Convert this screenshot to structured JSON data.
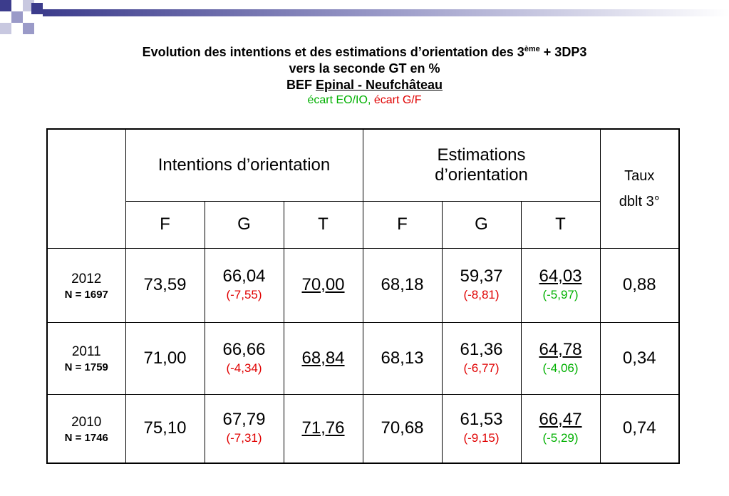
{
  "header": {
    "line1": "Evolution des intentions et des estimations d’orientation des 3",
    "line1_sup": "ème",
    "line1_end": "+ 3DP3",
    "line2": "vers la seconde GT en %",
    "line3_prefix": "BEF",
    "line3_place": "Epinal - Neufchâteau",
    "legend_green": "écart EO/IO,",
    "legend_red": "écart G/F"
  },
  "table": {
    "group_headers": [
      "Intentions d’orientation",
      "Estimations d’orientation",
      "Taux dblt 3°"
    ],
    "sub_headers": [
      "F",
      "G",
      "T",
      "F",
      "G",
      "T"
    ],
    "rows": [
      {
        "year": "2012",
        "n": "N = 1697",
        "cells": [
          {
            "value": "73,59"
          },
          {
            "value": "66,04",
            "note": "(-7,55)"
          },
          {
            "value": "70,00"
          },
          {
            "value": "68,18"
          },
          {
            "value": "59,37",
            "note": "(-8,81)"
          },
          {
            "value": "64,03",
            "note": "(-5,97)"
          },
          {
            "value": "0,88"
          }
        ]
      },
      {
        "year": "2011",
        "n": "N = 1759",
        "cells": [
          {
            "value": "71,00"
          },
          {
            "value": "66,66",
            "note": "(-4,34)"
          },
          {
            "value": "68,84"
          },
          {
            "value": "68,13"
          },
          {
            "value": "61,36",
            "note": "(-6,77)"
          },
          {
            "value": "64,78",
            "note": "(-4,06)"
          },
          {
            "value": "0,34"
          }
        ]
      },
      {
        "year": "2010",
        "n": "N = 1746",
        "cells": [
          {
            "value": "75,10"
          },
          {
            "value": "67,79",
            "note": "(-7,31)"
          },
          {
            "value": "71,76"
          },
          {
            "value": "70,68"
          },
          {
            "value": "61,53",
            "note": "(-9,15)"
          },
          {
            "value": "66,47",
            "note": "(-5,29)"
          },
          {
            "value": "0,74"
          }
        ]
      }
    ]
  }
}
